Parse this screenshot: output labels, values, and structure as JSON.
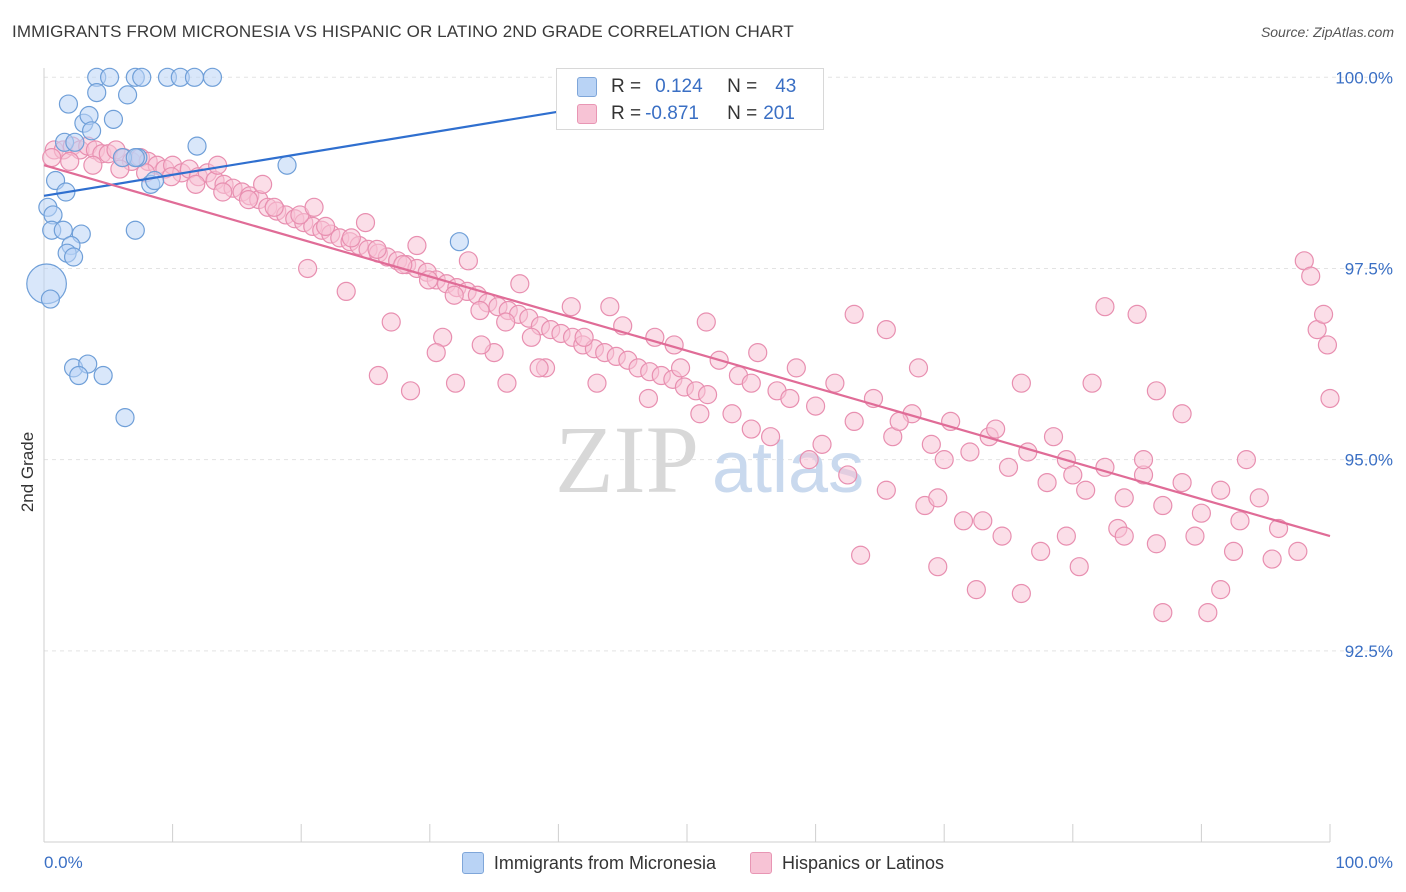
{
  "title": "IMMIGRANTS FROM MICRONESIA VS HISPANIC OR LATINO 2ND GRADE CORRELATION CHART",
  "source": "Source: ZipAtlas.com",
  "watermark": {
    "zip": "ZIP",
    "atlas": "atlas"
  },
  "legend": {
    "blue_label": "Immigrants from Micronesia",
    "pink_label": "Hispanics or Latinos"
  },
  "stats": {
    "blue": {
      "r_label": "R =",
      "r_value": "0.124",
      "n_label": "N =",
      "n_value": "43"
    },
    "pink": {
      "r_label": "R =",
      "r_value": "-0.871",
      "n_label": "N =",
      "n_value": "201"
    }
  },
  "colors": {
    "blue_fill": "#b9d3f5",
    "blue_stroke": "#6f9fd8",
    "blue_line": "#2f6fcf",
    "pink_fill": "#f7c3d5",
    "pink_stroke": "#e88fb0",
    "pink_line": "#e06c97",
    "axis_text": "#3a6fc4"
  },
  "chart_data": {
    "type": "scatter",
    "title": "IMMIGRANTS FROM MICRONESIA VS HISPANIC OR LATINO 2ND GRADE CORRELATION CHART",
    "xlabel": "",
    "ylabel": "2nd Grade",
    "xlim": [
      0,
      100
    ],
    "ylim": [
      90.0,
      100.2
    ],
    "x_tick_labels": [
      "0.0%",
      "100.0%"
    ],
    "y_ticks": [
      {
        "value": 100.0,
        "label": "100.0%"
      },
      {
        "value": 97.5,
        "label": "97.5%"
      },
      {
        "value": 95.0,
        "label": "95.0%"
      },
      {
        "value": 92.5,
        "label": "92.5%"
      }
    ],
    "series": [
      {
        "name": "Immigrants from Micronesia",
        "color": "blue",
        "trend": {
          "x0": 0,
          "y0": 98.45,
          "x1": 40,
          "y1": 99.55
        },
        "points": [
          [
            4.1,
            100.0
          ],
          [
            5.1,
            100.0
          ],
          [
            7.1,
            100.0
          ],
          [
            7.6,
            100.0
          ],
          [
            9.6,
            100.0
          ],
          [
            10.6,
            100.0
          ],
          [
            11.7,
            100.0
          ],
          [
            13.1,
            100.0
          ],
          [
            1.9,
            99.65
          ],
          [
            4.1,
            99.8
          ],
          [
            6.5,
            99.77
          ],
          [
            3.1,
            99.4
          ],
          [
            1.6,
            99.15
          ],
          [
            3.5,
            99.5
          ],
          [
            5.4,
            99.45
          ],
          [
            3.7,
            99.3
          ],
          [
            2.4,
            99.15
          ],
          [
            7.3,
            98.95
          ],
          [
            6.1,
            98.95
          ],
          [
            7.1,
            98.95
          ],
          [
            11.9,
            99.1
          ],
          [
            8.3,
            98.6
          ],
          [
            8.6,
            98.65
          ],
          [
            18.9,
            98.85
          ],
          [
            0.9,
            98.65
          ],
          [
            1.7,
            98.5
          ],
          [
            0.3,
            98.3
          ],
          [
            0.7,
            98.2
          ],
          [
            0.6,
            98.0
          ],
          [
            1.5,
            98.0
          ],
          [
            2.9,
            97.95
          ],
          [
            7.1,
            98.0
          ],
          [
            2.1,
            97.8
          ],
          [
            1.8,
            97.7
          ],
          [
            2.3,
            97.65
          ],
          [
            32.3,
            97.85
          ],
          [
            0.2,
            97.3
          ],
          [
            2.3,
            96.2
          ],
          [
            3.4,
            96.25
          ],
          [
            2.7,
            96.1
          ],
          [
            4.6,
            96.1
          ],
          [
            6.3,
            95.55
          ],
          [
            0.5,
            97.1
          ]
        ],
        "sizes": [
          1,
          1,
          1,
          1,
          1,
          1,
          1,
          1,
          1,
          1,
          1,
          1,
          1,
          1,
          1,
          1,
          1,
          1,
          1,
          1,
          1,
          1,
          1,
          1,
          1,
          1,
          1,
          1,
          1,
          1,
          1,
          1,
          1,
          1,
          1,
          1,
          2.2,
          1,
          1,
          1,
          1,
          1,
          1
        ]
      },
      {
        "name": "Hispanics or Latinos",
        "color": "pink",
        "trend": {
          "x0": 0,
          "y0": 98.85,
          "x1": 100,
          "y1": 94.0
        },
        "points": [
          [
            0.8,
            99.05
          ],
          [
            1.5,
            99.05
          ],
          [
            2.2,
            99.1
          ],
          [
            2.8,
            99.05
          ],
          [
            3.4,
            99.1
          ],
          [
            4.0,
            99.05
          ],
          [
            4.5,
            99.0
          ],
          [
            5.0,
            99.0
          ],
          [
            5.6,
            99.05
          ],
          [
            6.2,
            98.95
          ],
          [
            6.8,
            98.9
          ],
          [
            7.5,
            98.95
          ],
          [
            8.1,
            98.9
          ],
          [
            8.8,
            98.85
          ],
          [
            9.4,
            98.8
          ],
          [
            10.0,
            98.85
          ],
          [
            10.7,
            98.75
          ],
          [
            11.3,
            98.8
          ],
          [
            12.0,
            98.7
          ],
          [
            12.7,
            98.75
          ],
          [
            13.3,
            98.65
          ],
          [
            14.0,
            98.6
          ],
          [
            14.7,
            98.55
          ],
          [
            15.4,
            98.5
          ],
          [
            16.0,
            98.45
          ],
          [
            16.7,
            98.4
          ],
          [
            17.4,
            98.3
          ],
          [
            18.1,
            98.25
          ],
          [
            18.8,
            98.2
          ],
          [
            19.5,
            98.15
          ],
          [
            20.2,
            98.1
          ],
          [
            20.9,
            98.05
          ],
          [
            21.6,
            98.0
          ],
          [
            22.3,
            97.95
          ],
          [
            23.0,
            97.9
          ],
          [
            23.8,
            97.85
          ],
          [
            24.5,
            97.8
          ],
          [
            25.2,
            97.75
          ],
          [
            26.0,
            97.7
          ],
          [
            26.7,
            97.65
          ],
          [
            27.5,
            97.6
          ],
          [
            28.2,
            97.55
          ],
          [
            29.0,
            97.5
          ],
          [
            29.8,
            97.45
          ],
          [
            30.5,
            97.35
          ],
          [
            31.3,
            97.3
          ],
          [
            32.1,
            97.25
          ],
          [
            32.9,
            97.2
          ],
          [
            33.7,
            97.15
          ],
          [
            34.5,
            97.05
          ],
          [
            35.3,
            97.0
          ],
          [
            36.1,
            96.95
          ],
          [
            36.9,
            96.9
          ],
          [
            37.7,
            96.85
          ],
          [
            38.6,
            96.75
          ],
          [
            39.4,
            96.7
          ],
          [
            40.2,
            96.65
          ],
          [
            41.1,
            96.6
          ],
          [
            41.9,
            96.5
          ],
          [
            42.8,
            96.45
          ],
          [
            43.6,
            96.4
          ],
          [
            44.5,
            96.35
          ],
          [
            45.4,
            96.3
          ],
          [
            46.2,
            96.2
          ],
          [
            47.1,
            96.15
          ],
          [
            48.0,
            96.1
          ],
          [
            48.9,
            96.05
          ],
          [
            49.8,
            95.95
          ],
          [
            50.7,
            95.9
          ],
          [
            51.6,
            95.85
          ],
          [
            0.6,
            98.95
          ],
          [
            2.0,
            98.9
          ],
          [
            3.8,
            98.85
          ],
          [
            5.9,
            98.8
          ],
          [
            7.9,
            98.75
          ],
          [
            9.9,
            98.7
          ],
          [
            11.8,
            98.6
          ],
          [
            13.9,
            98.5
          ],
          [
            15.9,
            98.4
          ],
          [
            17.9,
            98.3
          ],
          [
            19.9,
            98.2
          ],
          [
            21.9,
            98.05
          ],
          [
            23.9,
            97.9
          ],
          [
            25.9,
            97.75
          ],
          [
            27.9,
            97.55
          ],
          [
            29.9,
            97.35
          ],
          [
            31.9,
            97.15
          ],
          [
            33.9,
            96.95
          ],
          [
            35.9,
            96.8
          ],
          [
            37.9,
            96.6
          ],
          [
            13.5,
            98.85
          ],
          [
            17.0,
            98.6
          ],
          [
            21.0,
            98.3
          ],
          [
            25.0,
            98.1
          ],
          [
            29.0,
            97.8
          ],
          [
            33.0,
            97.6
          ],
          [
            37.0,
            97.3
          ],
          [
            41.0,
            97.0
          ],
          [
            45.0,
            96.75
          ],
          [
            49.0,
            96.5
          ],
          [
            20.5,
            97.5
          ],
          [
            23.5,
            97.2
          ],
          [
            27.0,
            96.8
          ],
          [
            31.0,
            96.6
          ],
          [
            35.0,
            96.4
          ],
          [
            39.0,
            96.2
          ],
          [
            43.0,
            96.0
          ],
          [
            47.0,
            95.8
          ],
          [
            51.0,
            95.6
          ],
          [
            55.0,
            95.4
          ],
          [
            52.5,
            96.3
          ],
          [
            54.0,
            96.1
          ],
          [
            55.5,
            96.4
          ],
          [
            57.0,
            95.9
          ],
          [
            58.5,
            96.2
          ],
          [
            60.0,
            95.7
          ],
          [
            61.5,
            96.0
          ],
          [
            63.0,
            95.5
          ],
          [
            64.5,
            95.8
          ],
          [
            66.0,
            95.3
          ],
          [
            67.5,
            95.6
          ],
          [
            69.0,
            95.2
          ],
          [
            70.5,
            95.5
          ],
          [
            72.0,
            95.1
          ],
          [
            73.5,
            95.3
          ],
          [
            75.0,
            94.9
          ],
          [
            76.5,
            95.1
          ],
          [
            78.0,
            94.7
          ],
          [
            79.5,
            95.0
          ],
          [
            81.0,
            94.6
          ],
          [
            82.5,
            94.9
          ],
          [
            84.0,
            94.5
          ],
          [
            85.5,
            94.8
          ],
          [
            87.0,
            94.4
          ],
          [
            88.5,
            94.7
          ],
          [
            90.0,
            94.3
          ],
          [
            91.5,
            94.6
          ],
          [
            93.0,
            94.2
          ],
          [
            94.5,
            94.5
          ],
          [
            96.0,
            94.1
          ],
          [
            53.5,
            95.6
          ],
          [
            56.5,
            95.3
          ],
          [
            59.5,
            95.0
          ],
          [
            62.5,
            94.8
          ],
          [
            65.5,
            94.6
          ],
          [
            68.5,
            94.4
          ],
          [
            71.5,
            94.2
          ],
          [
            74.5,
            94.0
          ],
          [
            77.5,
            93.8
          ],
          [
            80.5,
            93.6
          ],
          [
            83.5,
            94.1
          ],
          [
            86.5,
            93.9
          ],
          [
            89.5,
            94.0
          ],
          [
            92.5,
            93.8
          ],
          [
            95.5,
            93.7
          ],
          [
            97.5,
            93.8
          ],
          [
            63.5,
            93.75
          ],
          [
            69.5,
            93.6
          ],
          [
            72.5,
            93.3
          ],
          [
            76.0,
            93.25
          ],
          [
            87.0,
            93.0
          ],
          [
            90.5,
            93.0
          ],
          [
            91.5,
            93.3
          ],
          [
            69.5,
            94.5
          ],
          [
            73.0,
            94.2
          ],
          [
            79.5,
            94.0
          ],
          [
            84.0,
            94.0
          ],
          [
            82.5,
            97.0
          ],
          [
            85.0,
            96.9
          ],
          [
            98.0,
            97.6
          ],
          [
            98.5,
            97.4
          ],
          [
            99.0,
            96.7
          ],
          [
            99.5,
            96.9
          ],
          [
            99.8,
            96.5
          ],
          [
            100.0,
            95.8
          ],
          [
            63.0,
            96.9
          ],
          [
            65.5,
            96.7
          ],
          [
            68.0,
            96.2
          ],
          [
            76.0,
            96.0
          ],
          [
            81.5,
            96.0
          ],
          [
            86.5,
            95.9
          ],
          [
            88.5,
            95.6
          ],
          [
            93.5,
            95.0
          ],
          [
            44.0,
            97.0
          ],
          [
            42.0,
            96.6
          ],
          [
            38.5,
            96.2
          ],
          [
            36.0,
            96.0
          ],
          [
            32.0,
            96.0
          ],
          [
            28.5,
            95.9
          ],
          [
            26.0,
            96.1
          ],
          [
            30.5,
            96.4
          ],
          [
            34.0,
            96.5
          ],
          [
            47.5,
            96.6
          ],
          [
            49.5,
            96.2
          ],
          [
            51.5,
            96.8
          ],
          [
            55.0,
            96.0
          ],
          [
            58.0,
            95.8
          ],
          [
            60.5,
            95.2
          ],
          [
            66.5,
            95.5
          ],
          [
            70.0,
            95.0
          ],
          [
            74.0,
            95.4
          ],
          [
            78.5,
            95.3
          ],
          [
            80.0,
            94.8
          ],
          [
            85.5,
            95.0
          ]
        ],
        "sizes": []
      }
    ]
  }
}
